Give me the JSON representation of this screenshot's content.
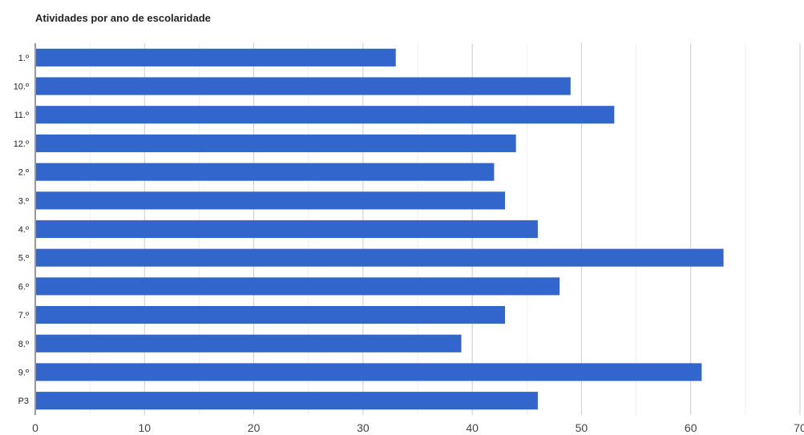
{
  "chart_data": {
    "type": "bar",
    "orientation": "horizontal",
    "title": "Atividades por ano de escolaridade",
    "xlabel": "",
    "ylabel": "",
    "categories": [
      "1.º",
      "10.º",
      "11.º",
      "12.º",
      "2.º",
      "3.º",
      "4.º",
      "5.º",
      "6.º",
      "7.º",
      "8.º",
      "9.º",
      "P3"
    ],
    "values": [
      33,
      49,
      53,
      44,
      42,
      43,
      46,
      63,
      48,
      43,
      39,
      61,
      46
    ],
    "xlim": [
      0,
      70
    ],
    "major_ticks": [
      0,
      10,
      20,
      30,
      40,
      50,
      60,
      70
    ],
    "tick_labels": [
      "0",
      "10",
      "20",
      "30",
      "40",
      "50",
      "60",
      "70"
    ],
    "grid": true,
    "legend": "none",
    "bar_color": "#3366cc"
  }
}
